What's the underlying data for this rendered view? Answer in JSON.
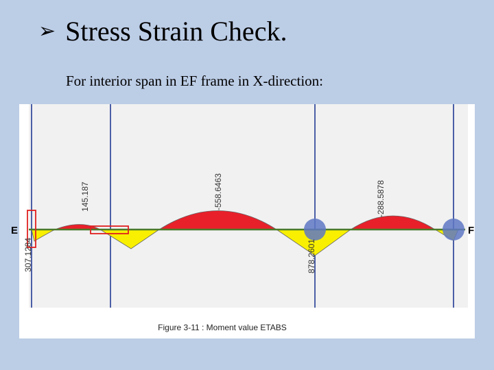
{
  "slide": {
    "title": "Stress Strain Check.",
    "bullet_icon": "arrow-bullet-icon",
    "subtitle": "For interior span in EF frame in X-direction:"
  },
  "figure": {
    "caption": "Figure 3-11 : Moment value ETABS",
    "left_node_label": "E",
    "right_node_label": "F",
    "moment_labels": {
      "m1": "307.1284",
      "m2": "145.187",
      "m3": "-558.6463",
      "m4": "878.2601",
      "m5": "-288.5878"
    },
    "colors": {
      "positive_fill": "#e8202a",
      "negative_fill": "#f8f000",
      "beam": "#4a7a2a",
      "column": "#4b5fa6",
      "support": "#5f78c4",
      "highlight": "#e02020"
    }
  }
}
